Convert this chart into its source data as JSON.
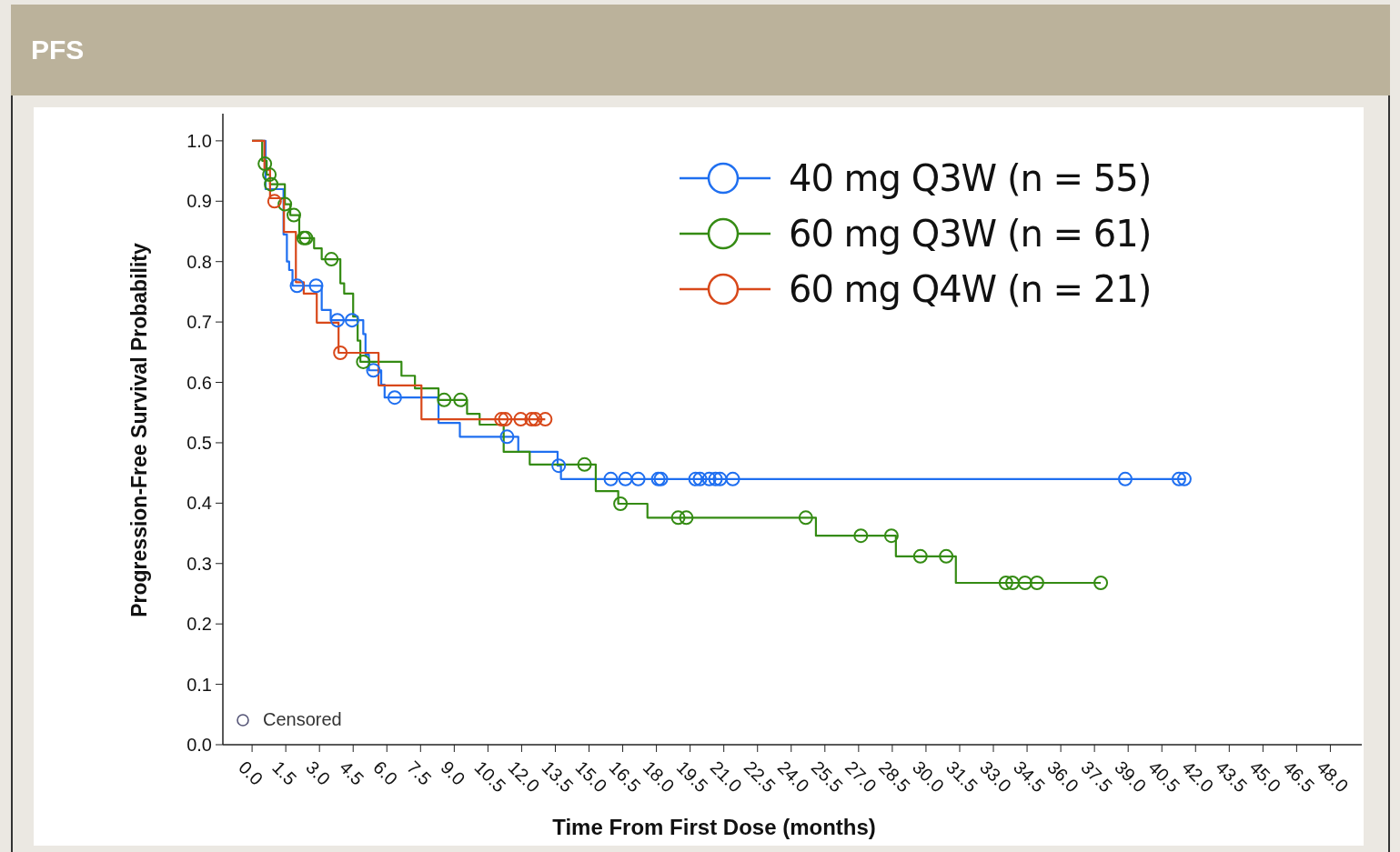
{
  "chart_data": {
    "type": "step",
    "title": "PFS",
    "xlabel": "Time From First Dose (months)",
    "ylabel": "Progression-Free Survival Probability",
    "xlim": [
      -1.3,
      49.4
    ],
    "ylim": [
      0,
      1.045
    ],
    "xticks": [
      {
        "value": 0,
        "label": "0.0"
      },
      {
        "value": 1.5,
        "label": "1.5"
      },
      {
        "value": 3,
        "label": "3.0"
      },
      {
        "value": 4.5,
        "label": "4.5"
      },
      {
        "value": 6,
        "label": "6.0"
      },
      {
        "value": 7.5,
        "label": "7.5"
      },
      {
        "value": 9,
        "label": "9.0"
      },
      {
        "value": 10.5,
        "label": "10.5"
      },
      {
        "value": 12,
        "label": "12.0"
      },
      {
        "value": 13.5,
        "label": "13.5"
      },
      {
        "value": 15,
        "label": "15.0"
      },
      {
        "value": 16.5,
        "label": "16.5"
      },
      {
        "value": 18,
        "label": "18.0"
      },
      {
        "value": 19.5,
        "label": "19.5"
      },
      {
        "value": 21,
        "label": "21.0"
      },
      {
        "value": 22.5,
        "label": "22.5"
      },
      {
        "value": 24,
        "label": "24.0"
      },
      {
        "value": 25.5,
        "label": "25.5"
      },
      {
        "value": 27,
        "label": "27.0"
      },
      {
        "value": 28.5,
        "label": "28.5"
      },
      {
        "value": 30,
        "label": "30.0"
      },
      {
        "value": 31.5,
        "label": "31.5"
      },
      {
        "value": 33,
        "label": "33.0"
      },
      {
        "value": 34.5,
        "label": "34.5"
      },
      {
        "value": 36,
        "label": "36.0"
      },
      {
        "value": 37.5,
        "label": "37.5"
      },
      {
        "value": 39,
        "label": "39.0"
      },
      {
        "value": 40.5,
        "label": "40.5"
      },
      {
        "value": 42,
        "label": "42.0"
      },
      {
        "value": 43.5,
        "label": "43.5"
      },
      {
        "value": 45,
        "label": "45.0"
      },
      {
        "value": 46.5,
        "label": "46.5"
      },
      {
        "value": 48,
        "label": "48.0"
      }
    ],
    "yticks": [
      {
        "value": 0,
        "label": "0.0"
      },
      {
        "value": 0.1,
        "label": "0.1"
      },
      {
        "value": 0.2,
        "label": "0.2"
      },
      {
        "value": 0.3,
        "label": "0.3"
      },
      {
        "value": 0.4,
        "label": "0.4"
      },
      {
        "value": 0.5,
        "label": "0.5"
      },
      {
        "value": 0.6,
        "label": "0.6"
      },
      {
        "value": 0.7,
        "label": "0.7"
      },
      {
        "value": 0.8,
        "label": "0.8"
      },
      {
        "value": 0.9,
        "label": "0.9"
      },
      {
        "value": 1,
        "label": "1.0"
      }
    ],
    "legend": "top right",
    "annotations": [
      "Censored"
    ],
    "series": [
      {
        "name": "40 mg Q3W (n = 55)",
        "color": "#1f6ff0",
        "x": [
          0,
          0.6,
          1.4,
          1.55,
          1.65,
          1.8,
          3.1,
          3.5,
          4.95,
          5.05,
          5.2,
          5.75,
          5.9,
          8.3,
          9.25,
          11.85,
          13.6,
          13.75,
          41.5
        ],
        "values": [
          1.0,
          0.92,
          0.845,
          0.8,
          0.786,
          0.76,
          0.72,
          0.703,
          0.68,
          0.646,
          0.62,
          0.596,
          0.575,
          0.533,
          0.51,
          0.485,
          0.462,
          0.44,
          0.44
        ]
      },
      {
        "name": "60 mg Q3W (n = 61)",
        "color": "#348b13",
        "x": [
          0,
          0.45,
          0.65,
          0.8,
          1.46,
          1.7,
          2.1,
          2.76,
          3.1,
          3.93,
          4.1,
          4.5,
          4.7,
          4.82,
          6.65,
          7.25,
          8.3,
          9.57,
          10.13,
          11.2,
          12.36,
          15.3,
          16.3,
          17.6,
          25.1,
          28.66,
          31.33,
          37.78
        ],
        "values": [
          1.0,
          0.967,
          0.944,
          0.928,
          0.895,
          0.877,
          0.839,
          0.822,
          0.804,
          0.764,
          0.747,
          0.709,
          0.669,
          0.634,
          0.611,
          0.59,
          0.571,
          0.548,
          0.53,
          0.485,
          0.464,
          0.42,
          0.399,
          0.376,
          0.346,
          0.312,
          0.268,
          0.268
        ]
      },
      {
        "name": "60 mg Q4W (n = 21)",
        "color": "#d8481a",
        "x": [
          0,
          0.55,
          0.8,
          1.42,
          1.95,
          2.3,
          2.88,
          3.85,
          5.63,
          7.54,
          13.05
        ],
        "values": [
          1.0,
          0.952,
          0.905,
          0.849,
          0.766,
          0.747,
          0.699,
          0.649,
          0.595,
          0.539,
          0.539
        ]
      },
      {
        "type": "scatter",
        "marker": "circle",
        "color": "#1f6ff0",
        "x": [
          2.0,
          2.85,
          3.8,
          4.45,
          5.4,
          6.35,
          11.35,
          13.65,
          15.97,
          16.62,
          17.19,
          18.08,
          18.2,
          19.74,
          19.94,
          20.35,
          20.63,
          20.83,
          21.4,
          38.87,
          41.26,
          41.5
        ],
        "values": [
          0.76,
          0.76,
          0.703,
          0.703,
          0.62,
          0.575,
          0.51,
          0.462,
          0.44,
          0.44,
          0.44,
          0.44,
          0.44,
          0.44,
          0.44,
          0.44,
          0.44,
          0.44,
          0.44,
          0.44,
          0.44,
          0.44
        ]
      },
      {
        "type": "scatter",
        "marker": "circle",
        "color": "#348b13",
        "x": [
          0.57,
          0.77,
          0.85,
          1.46,
          1.86,
          2.3,
          2.4,
          3.53,
          4.95,
          8.55,
          9.28,
          14.8,
          16.4,
          18.97,
          19.33,
          24.65,
          27.1,
          28.46,
          29.75,
          30.9,
          33.56,
          33.85,
          34.41,
          34.94,
          37.78
        ],
        "values": [
          0.962,
          0.944,
          0.928,
          0.895,
          0.877,
          0.839,
          0.839,
          0.804,
          0.634,
          0.571,
          0.571,
          0.464,
          0.399,
          0.376,
          0.376,
          0.376,
          0.346,
          0.346,
          0.312,
          0.312,
          0.268,
          0.268,
          0.268,
          0.268,
          0.268
        ]
      },
      {
        "type": "scatter",
        "marker": "circle",
        "color": "#d8481a",
        "x": [
          1.0,
          3.93,
          11.1,
          11.27,
          11.96,
          12.44,
          12.61,
          13.05
        ],
        "values": [
          0.9,
          0.649,
          0.539,
          0.539,
          0.539,
          0.539,
          0.539,
          0.539
        ]
      }
    ]
  }
}
